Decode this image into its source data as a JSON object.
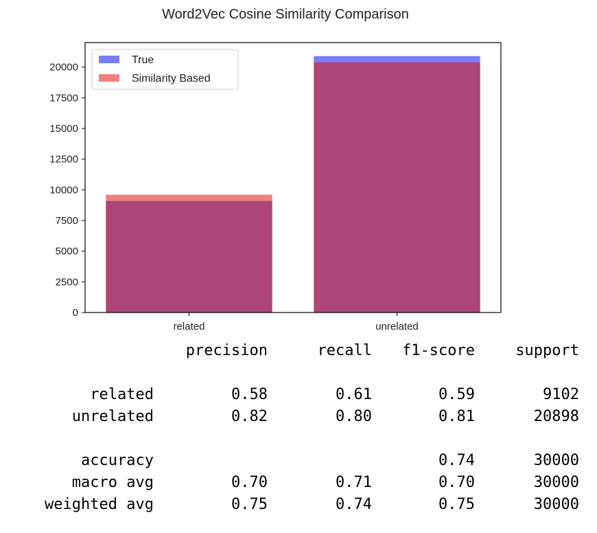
{
  "chart_data": {
    "type": "bar",
    "title": "Word2Vec Cosine Similarity Comparison",
    "categories": [
      "related",
      "unrelated"
    ],
    "series": [
      {
        "name": "True",
        "values": [
          9102,
          20898
        ],
        "color": "#7b7bff"
      },
      {
        "name": "Similarity Based",
        "values": [
          9600,
          20400
        ],
        "color": "#f08080"
      }
    ],
    "overlap_color": "#ac4578",
    "ylim": [
      0,
      22000
    ],
    "yticks": [
      "0",
      "2500",
      "5000",
      "7500",
      "10000",
      "12500",
      "15000",
      "17500",
      "20000"
    ],
    "legend_position": "top-left",
    "grid": false
  },
  "report": {
    "headers": [
      "",
      "precision",
      "recall",
      "f1-score",
      "support"
    ],
    "rows": [
      [
        "related",
        "0.58",
        "0.61",
        "0.59",
        "9102"
      ],
      [
        "unrelated",
        "0.82",
        "0.80",
        "0.81",
        "20898"
      ],
      [
        "accuracy",
        "",
        "",
        "0.74",
        "30000"
      ],
      [
        "macro avg",
        "0.70",
        "0.71",
        "0.70",
        "30000"
      ],
      [
        "weighted avg",
        "0.75",
        "0.74",
        "0.75",
        "30000"
      ]
    ]
  }
}
